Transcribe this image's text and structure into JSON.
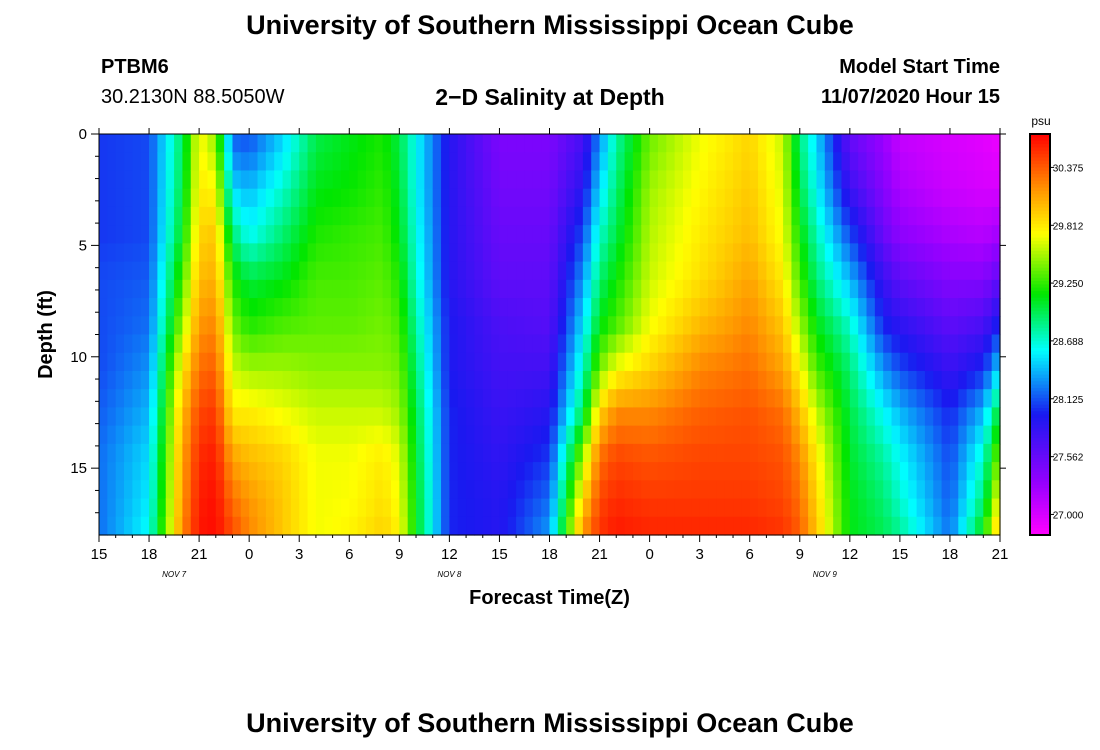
{
  "header": {
    "title": "University of Southern Mississippi Ocean Cube",
    "station": "PTBM6",
    "coords": "30.2130N 88.5050W",
    "subtitle": "2−D Salinity at Depth",
    "model_start_label": "Model Start Time",
    "model_start_value": "11/07/2020 Hour 15"
  },
  "footer": {
    "title": "University of Southern Mississippi Ocean Cube"
  },
  "chart_data": {
    "type": "heatmap",
    "title": "2−D Salinity at Depth",
    "xlabel": "Forecast Time(Z)",
    "ylabel": "Depth (ft)",
    "x_start_hour": 15,
    "x_end_hour": 69,
    "x_ticks": [
      {
        "hour": 15,
        "label": "15"
      },
      {
        "hour": 18,
        "label": "18"
      },
      {
        "hour": 21,
        "label": "21"
      },
      {
        "hour": 24,
        "label": "0"
      },
      {
        "hour": 27,
        "label": "3"
      },
      {
        "hour": 30,
        "label": "6"
      },
      {
        "hour": 33,
        "label": "9"
      },
      {
        "hour": 36,
        "label": "12"
      },
      {
        "hour": 39,
        "label": "15"
      },
      {
        "hour": 42,
        "label": "18"
      },
      {
        "hour": 45,
        "label": "21"
      },
      {
        "hour": 48,
        "label": "0"
      },
      {
        "hour": 51,
        "label": "3"
      },
      {
        "hour": 54,
        "label": "6"
      },
      {
        "hour": 57,
        "label": "9"
      },
      {
        "hour": 60,
        "label": "12"
      },
      {
        "hour": 63,
        "label": "15"
      },
      {
        "hour": 66,
        "label": "18"
      },
      {
        "hour": 69,
        "label": "21"
      }
    ],
    "date_labels": [
      {
        "hour": 19.5,
        "label": "NOV 7"
      },
      {
        "hour": 36,
        "label": "NOV 8"
      },
      {
        "hour": 58.5,
        "label": "NOV 9"
      }
    ],
    "y_range": [
      0,
      18
    ],
    "y_ticks": [
      0,
      5,
      10,
      15
    ],
    "colorbar": {
      "unit": "psu",
      "range": [
        26.8,
        30.7
      ],
      "ticks": [
        30.375,
        29.812,
        29.25,
        28.688,
        28.125,
        27.562,
        27.0
      ]
    },
    "depths_ft": [
      0.5,
      2.5,
      4.5,
      6.5,
      8.5,
      10.5,
      12.5,
      14.5,
      16.5,
      17.5
    ],
    "profile_hours": [
      15,
      18,
      20,
      21,
      22,
      23,
      24,
      26,
      28,
      30,
      32,
      33,
      34,
      36,
      39,
      42,
      44,
      45,
      46,
      48,
      51,
      54,
      56,
      57,
      58,
      60,
      62,
      63,
      66,
      68,
      69
    ],
    "salinity_profiles": [
      [
        28.05,
        28.05,
        28.05,
        28.1,
        28.1,
        28.1,
        28.15,
        28.2,
        28.2,
        28.2
      ],
      [
        28.1,
        28.1,
        28.1,
        28.15,
        28.2,
        28.3,
        28.4,
        28.5,
        28.55,
        28.6
      ],
      [
        28.95,
        29.0,
        29.1,
        29.3,
        29.5,
        29.8,
        30.0,
        30.1,
        30.15,
        30.2
      ],
      [
        29.75,
        29.8,
        29.9,
        30.0,
        30.15,
        30.3,
        30.45,
        30.55,
        30.6,
        30.62
      ],
      [
        29.5,
        29.75,
        29.95,
        30.05,
        30.2,
        30.35,
        30.5,
        30.6,
        30.65,
        30.66
      ],
      [
        28.2,
        28.5,
        28.9,
        29.2,
        29.4,
        29.6,
        29.8,
        30.1,
        30.3,
        30.4
      ],
      [
        28.15,
        28.4,
        28.6,
        29.0,
        29.2,
        29.5,
        29.8,
        30.0,
        30.15,
        30.2
      ],
      [
        28.5,
        28.7,
        28.9,
        29.1,
        29.3,
        29.5,
        29.7,
        29.9,
        29.95,
        29.95
      ],
      [
        29.0,
        29.1,
        29.2,
        29.3,
        29.35,
        29.45,
        29.6,
        29.7,
        29.7,
        29.7
      ],
      [
        29.1,
        29.15,
        29.25,
        29.3,
        29.35,
        29.45,
        29.6,
        29.7,
        29.72,
        29.75
      ],
      [
        29.2,
        29.25,
        29.3,
        29.35,
        29.4,
        29.45,
        29.6,
        29.8,
        29.85,
        29.9
      ],
      [
        29.0,
        29.05,
        29.1,
        29.2,
        29.3,
        29.4,
        29.5,
        29.65,
        29.7,
        29.75
      ],
      [
        28.6,
        28.6,
        28.65,
        28.7,
        28.8,
        28.9,
        29.0,
        29.05,
        29.1,
        29.1
      ],
      [
        27.9,
        27.9,
        27.9,
        27.9,
        27.95,
        27.95,
        28.0,
        28.0,
        28.0,
        28.0
      ],
      [
        27.45,
        27.5,
        27.55,
        27.6,
        27.7,
        27.75,
        27.8,
        27.85,
        27.9,
        27.9
      ],
      [
        27.45,
        27.5,
        27.55,
        27.6,
        27.65,
        27.75,
        27.9,
        28.05,
        28.2,
        28.3
      ],
      [
        27.75,
        27.9,
        28.1,
        28.3,
        28.5,
        28.7,
        28.95,
        29.5,
        29.9,
        30.1
      ],
      [
        28.3,
        28.5,
        28.7,
        28.9,
        29.1,
        29.4,
        29.9,
        30.3,
        30.45,
        30.5
      ],
      [
        28.8,
        28.9,
        29.0,
        29.15,
        29.3,
        29.7,
        30.2,
        30.45,
        30.55,
        30.6
      ],
      [
        29.4,
        29.5,
        29.55,
        29.6,
        29.7,
        29.9,
        30.2,
        30.4,
        30.5,
        30.55
      ],
      [
        29.7,
        29.75,
        29.8,
        29.85,
        30.0,
        30.2,
        30.35,
        30.45,
        30.5,
        30.55
      ],
      [
        29.9,
        29.95,
        30.0,
        30.1,
        30.2,
        30.3,
        30.4,
        30.45,
        30.5,
        30.55
      ],
      [
        29.6,
        29.65,
        29.7,
        29.8,
        29.95,
        30.1,
        30.3,
        30.4,
        30.45,
        30.5
      ],
      [
        28.9,
        29.0,
        29.15,
        29.3,
        29.5,
        29.75,
        30.0,
        30.2,
        30.3,
        30.35
      ],
      [
        28.5,
        28.6,
        28.75,
        28.9,
        29.1,
        29.3,
        29.6,
        29.8,
        29.9,
        29.95
      ],
      [
        27.6,
        27.8,
        28.1,
        28.4,
        28.7,
        28.9,
        29.0,
        29.05,
        29.1,
        29.1
      ],
      [
        27.3,
        27.4,
        27.55,
        27.8,
        28.0,
        28.3,
        28.6,
        28.8,
        28.9,
        28.95
      ],
      [
        27.1,
        27.2,
        27.35,
        27.6,
        27.85,
        28.1,
        28.4,
        28.6,
        28.7,
        28.8
      ],
      [
        27.0,
        27.05,
        27.2,
        27.4,
        27.6,
        27.8,
        28.0,
        28.1,
        28.15,
        28.2
      ],
      [
        26.95,
        27.0,
        27.15,
        27.4,
        27.7,
        28.0,
        28.4,
        28.7,
        28.9,
        29.1
      ],
      [
        26.9,
        27.0,
        27.25,
        27.6,
        28.0,
        28.5,
        29.1,
        29.5,
        29.8,
        30.0
      ]
    ]
  }
}
